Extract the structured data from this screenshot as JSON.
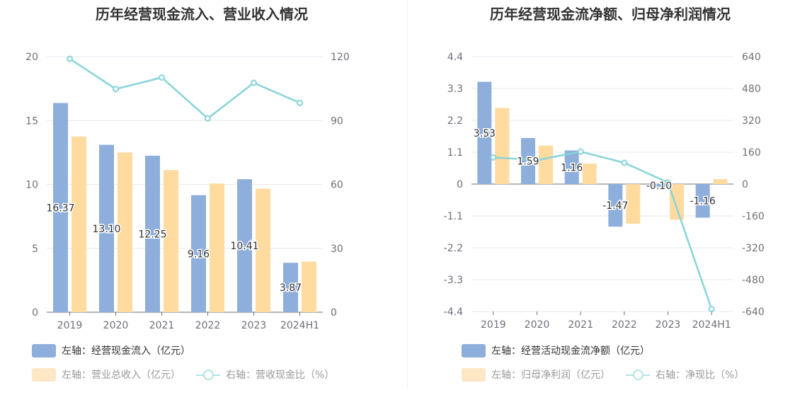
{
  "chart_data": [
    {
      "type": "bar",
      "title": "历年经营现金流入、营业收入情况",
      "categories": [
        "2019",
        "2020",
        "2021",
        "2022",
        "2023",
        "2024H1"
      ],
      "y_left": {
        "min": 0,
        "max": 20,
        "ticks": [
          "0",
          "5",
          "10",
          "15",
          "20"
        ]
      },
      "y_right": {
        "min": 0,
        "max": 120,
        "ticks": [
          "0",
          "30",
          "60",
          "90",
          "120"
        ]
      },
      "series": [
        {
          "name": "左轴：经营现金流入（亿元）",
          "axis": "left",
          "kind": "bar",
          "color": "#8eaedb",
          "values": [
            16.37,
            13.1,
            12.25,
            9.16,
            10.41,
            3.87
          ],
          "labels": [
            "16.37",
            "13.10",
            "12.25",
            "9.16",
            "10.41",
            "3.87"
          ]
        },
        {
          "name": "左轴：营业总收入（亿元）",
          "axis": "left",
          "kind": "bar",
          "color": "#ffdba0",
          "values": [
            13.75,
            12.5,
            11.12,
            10.07,
            9.67,
            3.96
          ]
        },
        {
          "name": "右轴：营收现金比（%）",
          "axis": "right",
          "kind": "line",
          "color": "#87d4d8",
          "values": [
            119.0,
            104.8,
            110.2,
            91.0,
            107.7,
            98.3
          ]
        }
      ],
      "legend_placement": "bottom-left",
      "grid": true
    },
    {
      "type": "bar",
      "title": "历年经营现金流净额、归母净利润情况",
      "categories": [
        "2019",
        "2020",
        "2021",
        "2022",
        "2023",
        "2024H1"
      ],
      "y_left": {
        "min": -4.4,
        "max": 4.4,
        "ticks": [
          "-4.4",
          "-3.3",
          "-2.2",
          "-1.1",
          "0",
          "1.1",
          "2.2",
          "3.3",
          "4.4"
        ]
      },
      "y_right": {
        "min": -640,
        "max": 640,
        "ticks": [
          "-640",
          "-480",
          "-320",
          "-160",
          "0",
          "160",
          "320",
          "480",
          "640"
        ]
      },
      "series": [
        {
          "name": "左轴：经营活动现金流净额（亿元）",
          "axis": "left",
          "kind": "bar",
          "color": "#8eaedb",
          "values": [
            3.53,
            1.59,
            1.16,
            -1.47,
            -0.1,
            -1.16
          ],
          "labels": [
            "3.53",
            "1.59",
            "1.16",
            "-1.47",
            "-0.10",
            "-1.16"
          ]
        },
        {
          "name": "左轴：归母净利润（亿元）",
          "axis": "left",
          "kind": "bar",
          "color": "#ffdba0",
          "values": [
            2.63,
            1.33,
            0.71,
            -1.37,
            -1.23,
            0.17
          ]
        },
        {
          "name": "右轴：净现比（%）",
          "axis": "right",
          "kind": "line",
          "color": "#87d4d8",
          "values": [
            134,
            120,
            163,
            107,
            8,
            -628
          ]
        }
      ],
      "legend_placement": "bottom-left",
      "grid": true
    }
  ]
}
